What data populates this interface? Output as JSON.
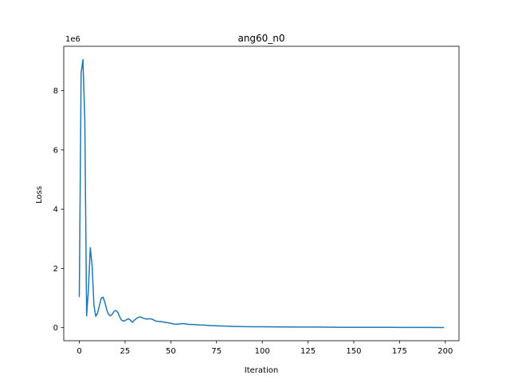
{
  "chart_data": {
    "type": "line",
    "title": "ang60_n0",
    "xlabel": "Iteration",
    "ylabel": "Loss",
    "y_multiplier_label": "1e6",
    "xlim": [
      -8.5,
      207.5
    ],
    "ylim": [
      -0.44,
      9.5
    ],
    "x_ticks": [
      0,
      25,
      50,
      75,
      100,
      125,
      150,
      175,
      200
    ],
    "y_ticks": [
      0,
      2,
      4,
      6,
      8
    ],
    "series_color": "#1f77b4",
    "series": [
      {
        "x": [
          0,
          1,
          2,
          3,
          4,
          5,
          6,
          7,
          8,
          9,
          10,
          11,
          12,
          13,
          14,
          15,
          16,
          17,
          18,
          19,
          20,
          21,
          22,
          23,
          24,
          25,
          26,
          27,
          28,
          29,
          30,
          31,
          32,
          33,
          34,
          35,
          36,
          37,
          38,
          39,
          40,
          41,
          42,
          43,
          44,
          45,
          46,
          47,
          48,
          49,
          50,
          52,
          54,
          56,
          58,
          60,
          62,
          64,
          66,
          68,
          70,
          72,
          74,
          76,
          78,
          80,
          85,
          90,
          95,
          100,
          110,
          120,
          130,
          140,
          150,
          160,
          170,
          180,
          190,
          199
        ],
        "y": [
          1.05,
          8.6,
          9.05,
          7.0,
          0.4,
          1.3,
          2.7,
          2.1,
          0.75,
          0.38,
          0.5,
          0.75,
          1.0,
          1.03,
          0.85,
          0.6,
          0.45,
          0.4,
          0.45,
          0.55,
          0.58,
          0.52,
          0.38,
          0.26,
          0.22,
          0.24,
          0.28,
          0.3,
          0.25,
          0.18,
          0.25,
          0.3,
          0.34,
          0.36,
          0.35,
          0.32,
          0.3,
          0.29,
          0.3,
          0.3,
          0.28,
          0.25,
          0.22,
          0.21,
          0.21,
          0.2,
          0.19,
          0.18,
          0.17,
          0.16,
          0.15,
          0.12,
          0.12,
          0.14,
          0.13,
          0.11,
          0.11,
          0.1,
          0.09,
          0.09,
          0.08,
          0.07,
          0.07,
          0.06,
          0.06,
          0.05,
          0.04,
          0.035,
          0.03,
          0.03,
          0.025,
          0.02,
          0.02,
          0.015,
          0.012,
          0.01,
          0.01,
          0.008,
          0.007,
          0.006
        ]
      }
    ],
    "grid": false
  }
}
